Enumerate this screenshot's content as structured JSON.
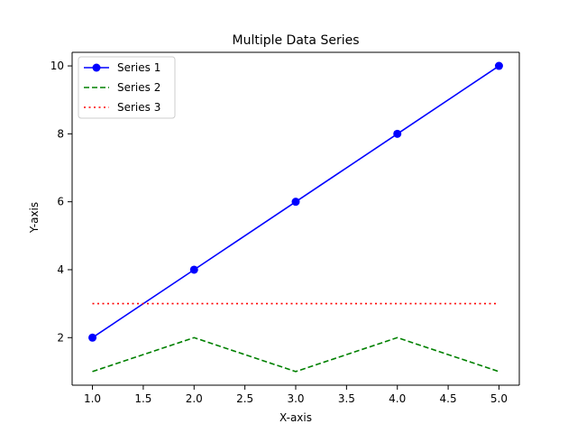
{
  "chart_data": {
    "type": "line",
    "title": "Multiple Data Series",
    "xlabel": "X-axis",
    "ylabel": "Y-axis",
    "xlim": [
      0.8,
      5.2
    ],
    "ylim": [
      0.6,
      10.4
    ],
    "xticks": [
      1.0,
      1.5,
      2.0,
      2.5,
      3.0,
      3.5,
      4.0,
      4.5,
      5.0
    ],
    "xtick_labels": [
      "1.0",
      "1.5",
      "2.0",
      "2.5",
      "3.0",
      "3.5",
      "4.0",
      "4.5",
      "5.0"
    ],
    "yticks": [
      2,
      4,
      6,
      8,
      10
    ],
    "ytick_labels": [
      "2",
      "4",
      "6",
      "8",
      "10"
    ],
    "grid": false,
    "legend_position": "upper-left",
    "series": [
      {
        "name": "Series 1",
        "x": [
          1,
          2,
          3,
          4,
          5
        ],
        "y": [
          2,
          4,
          6,
          8,
          10
        ],
        "color": "#0000ff",
        "linestyle": "solid",
        "marker": "circle"
      },
      {
        "name": "Series 2",
        "x": [
          1,
          2,
          3,
          4,
          5
        ],
        "y": [
          1,
          2,
          1,
          2,
          1
        ],
        "color": "#008000",
        "linestyle": "dashed",
        "marker": "none"
      },
      {
        "name": "Series 3",
        "x": [
          1,
          2,
          3,
          4,
          5
        ],
        "y": [
          3,
          3,
          3,
          3,
          3
        ],
        "color": "#ff0000",
        "linestyle": "dotted",
        "marker": "none"
      }
    ]
  }
}
